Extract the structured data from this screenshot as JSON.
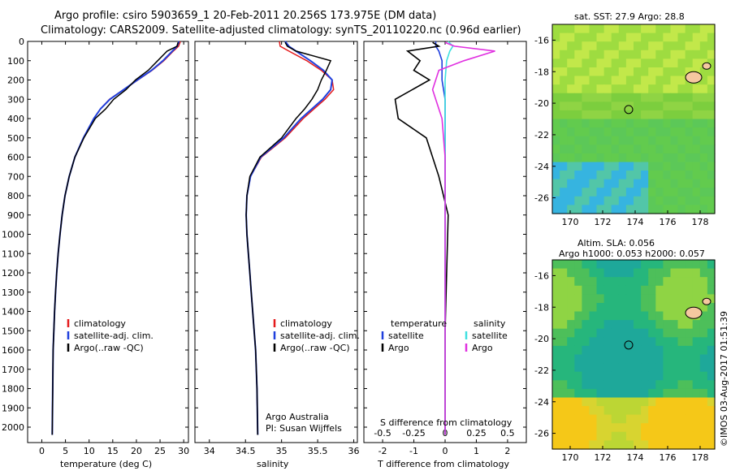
{
  "header": {
    "line1": "Argo profile: csiro 5903659_1 20-Feb-2011 20.256S 173.975E (DM data)",
    "line2": "Climatology: CARS2009. Satellite-adjusted climatology: synTS_20110220.nc (0.96d earlier)"
  },
  "colors": {
    "climatology": "#e41a1c",
    "satellite": "#1f3fdd",
    "argo": "#000000",
    "salinity_sat": "#3fe0e0",
    "salinity_argo": "#e030e0"
  },
  "depth_ticks": [
    "0",
    "100",
    "200",
    "300",
    "400",
    "500",
    "600",
    "700",
    "800",
    "900",
    "1000",
    "1100",
    "1200",
    "1300",
    "1400",
    "1500",
    "1600",
    "1700",
    "1800",
    "1900",
    "2000"
  ],
  "temperature_panel": {
    "xlabel": "temperature (deg C)",
    "xticks": [
      "0",
      "5",
      "10",
      "15",
      "20",
      "25",
      "30"
    ],
    "legend": [
      "climatology",
      "satellite-adj. clim.",
      "Argo(..raw -QC)"
    ]
  },
  "salinity_panel": {
    "xlabel": "salinity",
    "xticks": [
      "34",
      "34.5",
      "35",
      "35.5",
      "36"
    ],
    "legend": [
      "climatology",
      "satellite-adj. clim.",
      "Argo(..raw -QC)"
    ],
    "note1": "Argo Australia",
    "note2": "PI: Susan Wijffels"
  },
  "difference_panel": {
    "top_xlabel": "S difference from climatology",
    "top_xticks": [
      "-0.5",
      "-0.25",
      "0",
      "0.25",
      "0.5"
    ],
    "xlabel": "T difference from climatology",
    "xticks": [
      "-2",
      "-1",
      "0",
      "1",
      "2"
    ],
    "legend_temp_title": "temperature",
    "legend_sal_title": "salinity",
    "legend_temp": [
      "satellite",
      "Argo"
    ],
    "legend_sal": [
      "satellite",
      "Argo"
    ]
  },
  "sst_map": {
    "title": "sat. SST: 27.9  Argo: 28.8",
    "yticks": [
      "-16",
      "-18",
      "-20",
      "-22",
      "-24",
      "-26"
    ],
    "xticks": [
      "170",
      "172",
      "174",
      "176",
      "178"
    ]
  },
  "sla_map": {
    "title1": "Altim. SLA: 0.056",
    "title2": "Argo h1000: 0.053 h2000: 0.057",
    "yticks": [
      "-16",
      "-18",
      "-20",
      "-22",
      "-24",
      "-26"
    ],
    "xticks": [
      "170",
      "172",
      "174",
      "176",
      "178"
    ]
  },
  "footer": {
    "stamp": "©IMOS 03-Aug-2017 01:51:39"
  },
  "chart_data": [
    {
      "type": "line",
      "title": "temperature profile",
      "xlabel": "temperature (deg C)",
      "ylabel": "depth",
      "xlim": [
        -3,
        31
      ],
      "ylim": [
        2080,
        0
      ],
      "series": [
        {
          "name": "climatology",
          "x": [
            29.3,
            28.9,
            27.8,
            25.8,
            23.3,
            20.3,
            17.3,
            14.3,
            12.4,
            11.0,
            8.8,
            7.0,
            5.8,
            4.9,
            4.3,
            3.85,
            3.45,
            3.15,
            2.9,
            2.7,
            2.55,
            2.4,
            2.3,
            2.2
          ],
          "depth": [
            0,
            25,
            50,
            100,
            150,
            200,
            250,
            300,
            350,
            400,
            500,
            600,
            700,
            800,
            900,
            1000,
            1100,
            1200,
            1300,
            1400,
            1500,
            1600,
            1800,
            2040
          ]
        },
        {
          "name": "satellite-adj. clim.",
          "x": [
            29.0,
            28.6,
            27.6,
            25.6,
            23.2,
            20.2,
            17.3,
            14.4,
            12.4,
            11.0,
            8.8,
            7.0,
            5.8,
            4.9,
            4.3,
            3.85,
            3.45,
            3.15,
            2.9,
            2.7,
            2.55,
            2.4,
            2.3,
            2.2
          ],
          "depth": [
            0,
            25,
            50,
            100,
            150,
            200,
            250,
            300,
            350,
            400,
            500,
            600,
            700,
            800,
            900,
            1000,
            1100,
            1200,
            1300,
            1400,
            1500,
            1600,
            1800,
            2040
          ]
        },
        {
          "name": "Argo(..raw -QC)",
          "x": [
            28.8,
            28.6,
            26.5,
            24.5,
            22.5,
            19.8,
            17.8,
            15.2,
            13.5,
            11.3,
            8.9,
            7.0,
            5.8,
            4.9,
            4.3,
            3.85,
            3.45,
            3.15,
            2.9,
            2.7,
            2.55,
            2.4,
            2.3,
            2.2
          ],
          "depth": [
            5,
            25,
            50,
            100,
            150,
            200,
            250,
            300,
            350,
            400,
            500,
            600,
            700,
            800,
            900,
            1000,
            1100,
            1200,
            1300,
            1400,
            1500,
            1600,
            1800,
            2040
          ]
        }
      ]
    },
    {
      "type": "line",
      "title": "salinity profile",
      "xlabel": "salinity",
      "ylabel": "depth",
      "xlim": [
        33.8,
        36.05
      ],
      "ylim": [
        2080,
        0
      ],
      "series": [
        {
          "name": "climatology",
          "x": [
            34.97,
            34.98,
            35.1,
            35.35,
            35.55,
            35.7,
            35.72,
            35.6,
            35.45,
            35.3,
            35.05,
            34.72,
            34.57,
            34.52,
            34.51,
            34.52,
            34.54,
            34.56,
            34.58,
            34.6,
            34.62,
            34.64,
            34.66,
            34.67
          ],
          "depth": [
            0,
            25,
            50,
            100,
            150,
            200,
            250,
            300,
            350,
            400,
            500,
            600,
            700,
            800,
            900,
            1000,
            1100,
            1200,
            1300,
            1400,
            1500,
            1600,
            1800,
            2040
          ]
        },
        {
          "name": "satellite-adj. clim.",
          "x": [
            35.05,
            35.1,
            35.2,
            35.4,
            35.58,
            35.7,
            35.68,
            35.57,
            35.42,
            35.27,
            35.03,
            34.71,
            34.57,
            34.52,
            34.51,
            34.52,
            34.54,
            34.56,
            34.58,
            34.6,
            34.62,
            34.64,
            34.66,
            34.67
          ],
          "depth": [
            0,
            25,
            50,
            100,
            150,
            200,
            250,
            300,
            350,
            400,
            500,
            600,
            700,
            800,
            900,
            1000,
            1100,
            1200,
            1300,
            1400,
            1500,
            1600,
            1800,
            2040
          ]
        },
        {
          "name": "Argo(..raw -QC)",
          "x": [
            35.05,
            35.08,
            35.2,
            35.68,
            35.62,
            35.55,
            35.5,
            35.42,
            35.32,
            35.2,
            35.0,
            34.7,
            34.56,
            34.52,
            34.51,
            34.52,
            34.54,
            34.56,
            34.58,
            34.6,
            34.62,
            34.64,
            34.66,
            34.67
          ],
          "depth": [
            5,
            25,
            50,
            100,
            150,
            200,
            250,
            300,
            350,
            400,
            500,
            600,
            700,
            800,
            900,
            1000,
            1100,
            1200,
            1300,
            1400,
            1500,
            1600,
            1800,
            2040
          ]
        }
      ]
    },
    {
      "type": "line",
      "title": "difference from climatology",
      "xlabel": "T difference from climatology",
      "xlim": [
        -2.6,
        2.6
      ],
      "ylim": [
        2080,
        0
      ],
      "series": [
        {
          "name": "temperature satellite",
          "x": [
            -0.3,
            -0.3,
            -0.2,
            -0.1,
            -0.1,
            -0.1,
            0,
            0,
            0,
            0,
            0,
            0
          ],
          "depth": [
            0,
            25,
            50,
            100,
            150,
            200,
            300,
            400,
            600,
            1000,
            1500,
            2040
          ]
        },
        {
          "name": "temperature Argo",
          "x": [
            -0.4,
            -0.2,
            -1.2,
            -0.8,
            -1.0,
            -0.5,
            -1.6,
            -1.5,
            -0.6,
            -0.2,
            0.1,
            0,
            0
          ],
          "depth": [
            5,
            25,
            50,
            100,
            150,
            200,
            300,
            400,
            500,
            700,
            900,
            1500,
            2040
          ]
        },
        {
          "name": "salinity satellite",
          "x": [
            0.1,
            0.25,
            0.15,
            0.05,
            0.0,
            0,
            0,
            0
          ],
          "depth": [
            0,
            25,
            50,
            100,
            200,
            300,
            600,
            2040
          ]
        },
        {
          "name": "salinity Argo",
          "x": [
            0.0,
            0.3,
            1.6,
            0.6,
            -0.2,
            -0.4,
            -0.1,
            0,
            0
          ],
          "depth": [
            5,
            25,
            50,
            100,
            150,
            250,
            400,
            600,
            2040
          ]
        }
      ]
    }
  ]
}
